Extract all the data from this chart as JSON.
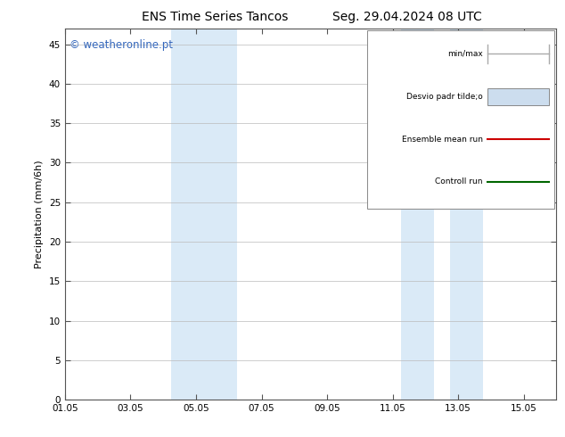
{
  "title_left": "ENS Time Series Tancos",
  "title_right": "Seg. 29.04.2024 08 UTC",
  "ylabel": "Precipitation (mm/6h)",
  "ylim": [
    0,
    47
  ],
  "yticks": [
    0,
    5,
    10,
    15,
    20,
    25,
    30,
    35,
    40,
    45
  ],
  "xlim": [
    0,
    15
  ],
  "xticks_labels": [
    "01.05",
    "03.05",
    "05.05",
    "07.05",
    "09.05",
    "11.05",
    "13.05",
    "15.05"
  ],
  "xtick_positions": [
    0,
    2,
    4,
    6,
    8,
    10,
    12,
    14
  ],
  "shaded_bands": [
    {
      "x_start": 3.25,
      "x_end": 4.25,
      "color": "#daeaf7"
    },
    {
      "x_start": 4.25,
      "x_end": 5.25,
      "color": "#daeaf7"
    },
    {
      "x_start": 10.25,
      "x_end": 11.25,
      "color": "#daeaf7"
    },
    {
      "x_start": 11.75,
      "x_end": 12.75,
      "color": "#daeaf7"
    }
  ],
  "watermark_text": "© weatheronline.pt",
  "watermark_color": "#3366bb",
  "legend_items": [
    {
      "label": "min/max",
      "color": "#aaaaaa",
      "type": "minmax"
    },
    {
      "label": "Desvio padr tilde;o",
      "color": "#ccddee",
      "type": "box"
    },
    {
      "label": "Ensemble mean run",
      "color": "#cc0000",
      "type": "line"
    },
    {
      "label": "Controll run",
      "color": "#006600",
      "type": "line"
    }
  ],
  "bg_color": "#ffffff",
  "plot_bg_color": "#ffffff",
  "grid_color": "#bbbbbb",
  "tick_label_fontsize": 7.5,
  "axis_label_fontsize": 8,
  "title_fontsize": 10,
  "watermark_fontsize": 8.5
}
